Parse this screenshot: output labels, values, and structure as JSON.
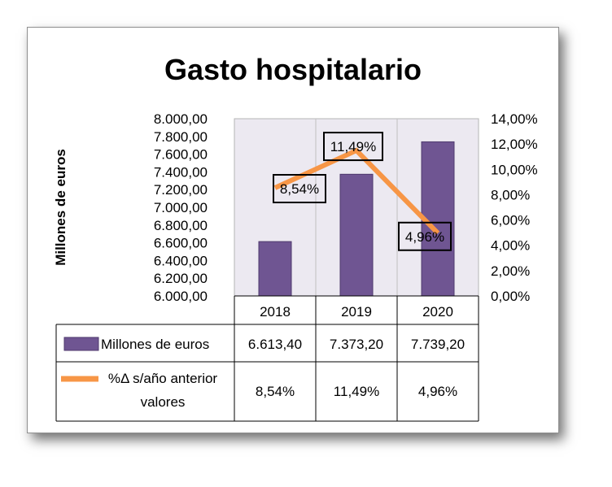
{
  "chart_data": {
    "type": "bar",
    "title": "Gasto hospitalario",
    "ylabel": "Millones de euros",
    "categories": [
      "2018",
      "2019",
      "2020"
    ],
    "y_ticks": [
      "8.000,00",
      "7.800,00",
      "7.600,00",
      "7.400,00",
      "7.200,00",
      "7.000,00",
      "6.800,00",
      "6.600,00",
      "6.400,00",
      "6.200,00",
      "6.000,00"
    ],
    "y2_ticks": [
      "14,00%",
      "12,00%",
      "10,00%",
      "8,00%",
      "6,00%",
      "4,00%",
      "2,00%",
      "0,00%"
    ],
    "ylim": [
      6000,
      8000
    ],
    "y2lim": [
      0,
      14
    ],
    "series": [
      {
        "name": "Millones de euros",
        "chart": "bar",
        "axis": "left",
        "color": "#6f5592",
        "values": [
          6613.4,
          7373.2,
          7739.2
        ],
        "labels": [
          "6.613,40",
          "7.373,20",
          "7.739,20"
        ]
      },
      {
        "name": "%Δ s/año anterior valores",
        "name_lines": [
          "%Δ s/año anterior",
          "valores"
        ],
        "chart": "line",
        "axis": "right",
        "color": "#f79646",
        "values": [
          8.54,
          11.49,
          4.96
        ],
        "labels": [
          "8,54%",
          "11,49%",
          "4,96%"
        ]
      }
    ],
    "plot_background": "#ece9f1",
    "legend": "data table below plot"
  }
}
